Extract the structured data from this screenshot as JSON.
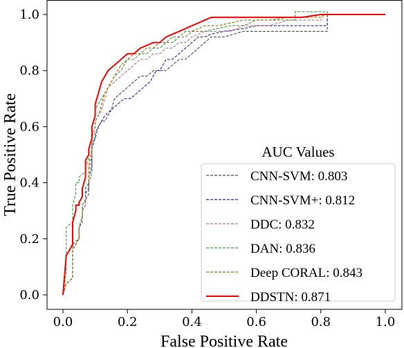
{
  "chart_data": {
    "type": "line",
    "xlabel": "False Positive Rate",
    "ylabel": "True Positive Rate",
    "xlim": [
      0.0,
      1.0
    ],
    "ylim": [
      0.0,
      1.0
    ],
    "xticks": [
      "0.0",
      "0.2",
      "0.4",
      "0.6",
      "0.8",
      "1.0"
    ],
    "yticks": [
      "0.0",
      "0.2",
      "0.4",
      "0.6",
      "0.8",
      "1.0"
    ],
    "grid": false,
    "legend": {
      "title": "AUC Values",
      "placement": "lower-right"
    },
    "series": [
      {
        "name": "CNN-SVM: 0.803",
        "color": "#4a4a6a",
        "dash": "dashed",
        "x": [
          0.0,
          0.01,
          0.01,
          0.03,
          0.03,
          0.05,
          0.05,
          0.06,
          0.06,
          0.07,
          0.07,
          0.08,
          0.08,
          0.09,
          0.09,
          0.1,
          0.1,
          0.11,
          0.12,
          0.13,
          0.14,
          0.15,
          0.16,
          0.18,
          0.2,
          0.22,
          0.24,
          0.26,
          0.28,
          0.3,
          0.32,
          0.34,
          0.36,
          0.38,
          0.4,
          0.42,
          0.44,
          0.46,
          0.5,
          0.56,
          0.6,
          0.62,
          0.64,
          0.66,
          0.7,
          0.74,
          0.8,
          0.82,
          0.82,
          1.0
        ],
        "y": [
          0.0,
          0.04,
          0.04,
          0.06,
          0.18,
          0.2,
          0.24,
          0.26,
          0.3,
          0.32,
          0.34,
          0.36,
          0.4,
          0.44,
          0.54,
          0.56,
          0.58,
          0.6,
          0.62,
          0.62,
          0.64,
          0.66,
          0.7,
          0.72,
          0.74,
          0.76,
          0.78,
          0.78,
          0.8,
          0.8,
          0.8,
          0.82,
          0.84,
          0.84,
          0.86,
          0.88,
          0.9,
          0.92,
          0.92,
          0.94,
          0.94,
          0.94,
          0.94,
          0.94,
          0.94,
          0.94,
          0.94,
          0.94,
          1.0,
          1.0
        ]
      },
      {
        "name": "CNN-SVM+: 0.812",
        "color": "#1f2aa0",
        "dash": "dashed",
        "x": [
          0.0,
          0.01,
          0.01,
          0.03,
          0.03,
          0.05,
          0.05,
          0.06,
          0.06,
          0.07,
          0.07,
          0.08,
          0.08,
          0.09,
          0.09,
          0.1,
          0.11,
          0.12,
          0.13,
          0.15,
          0.17,
          0.19,
          0.21,
          0.23,
          0.25,
          0.27,
          0.28,
          0.29,
          0.3,
          0.31,
          0.32,
          0.34,
          0.36,
          0.38,
          0.4,
          0.42,
          0.44,
          0.46,
          0.5,
          0.56,
          0.6,
          0.64,
          0.7,
          0.74,
          0.8,
          0.82,
          0.82,
          1.0
        ],
        "y": [
          0.0,
          0.04,
          0.04,
          0.06,
          0.16,
          0.2,
          0.24,
          0.28,
          0.32,
          0.34,
          0.36,
          0.38,
          0.42,
          0.46,
          0.52,
          0.56,
          0.6,
          0.62,
          0.64,
          0.66,
          0.68,
          0.7,
          0.7,
          0.72,
          0.74,
          0.76,
          0.78,
          0.8,
          0.8,
          0.82,
          0.84,
          0.84,
          0.86,
          0.88,
          0.9,
          0.92,
          0.92,
          0.93,
          0.94,
          0.95,
          0.96,
          0.96,
          0.96,
          0.96,
          0.96,
          0.96,
          1.0,
          1.0
        ]
      },
      {
        "name": "DDC: 0.832",
        "color": "#d07070",
        "dash": "dashed",
        "x": [
          0.0,
          0.01,
          0.01,
          0.03,
          0.03,
          0.05,
          0.05,
          0.06,
          0.06,
          0.07,
          0.07,
          0.08,
          0.08,
          0.09,
          0.09,
          0.1,
          0.1,
          0.11,
          0.12,
          0.13,
          0.14,
          0.16,
          0.18,
          0.2,
          0.22,
          0.24,
          0.26,
          0.28,
          0.3,
          0.32,
          0.34,
          0.36,
          0.38,
          0.4,
          0.44,
          0.48,
          0.52,
          0.56,
          0.6,
          0.64,
          0.7,
          0.74,
          0.78,
          0.8,
          0.81,
          1.0
        ],
        "y": [
          0.0,
          0.04,
          0.04,
          0.06,
          0.16,
          0.2,
          0.24,
          0.28,
          0.32,
          0.34,
          0.38,
          0.4,
          0.44,
          0.5,
          0.56,
          0.6,
          0.62,
          0.64,
          0.66,
          0.7,
          0.74,
          0.76,
          0.78,
          0.8,
          0.82,
          0.84,
          0.84,
          0.86,
          0.86,
          0.88,
          0.88,
          0.9,
          0.9,
          0.92,
          0.94,
          0.94,
          0.94,
          0.96,
          0.96,
          0.96,
          0.98,
          0.98,
          0.98,
          0.98,
          1.0,
          1.0
        ]
      },
      {
        "name": "DAN: 0.836",
        "color": "#3aa03a",
        "dash": "dashed",
        "x": [
          0.0,
          0.01,
          0.01,
          0.03,
          0.03,
          0.04,
          0.04,
          0.05,
          0.05,
          0.07,
          0.07,
          0.08,
          0.08,
          0.09,
          0.09,
          0.1,
          0.1,
          0.11,
          0.12,
          0.14,
          0.15,
          0.16,
          0.18,
          0.2,
          0.22,
          0.24,
          0.26,
          0.28,
          0.3,
          0.32,
          0.34,
          0.36,
          0.38,
          0.4,
          0.44,
          0.48,
          0.52,
          0.56,
          0.6,
          0.64,
          0.7,
          0.72,
          0.72,
          0.8,
          0.82,
          0.82,
          1.0
        ],
        "y": [
          0.0,
          0.08,
          0.24,
          0.26,
          0.32,
          0.36,
          0.4,
          0.4,
          0.42,
          0.44,
          0.46,
          0.48,
          0.52,
          0.56,
          0.6,
          0.64,
          0.66,
          0.68,
          0.7,
          0.74,
          0.76,
          0.78,
          0.8,
          0.84,
          0.84,
          0.86,
          0.86,
          0.88,
          0.88,
          0.9,
          0.9,
          0.92,
          0.92,
          0.94,
          0.94,
          0.95,
          0.96,
          0.96,
          0.98,
          0.98,
          0.98,
          0.98,
          1.01,
          1.01,
          1.01,
          1.0,
          1.0
        ]
      },
      {
        "name": "Deep CORAL: 0.843",
        "color": "#8a7a10",
        "dash": "dashed",
        "x": [
          0.0,
          0.01,
          0.01,
          0.03,
          0.03,
          0.05,
          0.05,
          0.06,
          0.06,
          0.07,
          0.07,
          0.08,
          0.08,
          0.09,
          0.09,
          0.1,
          0.1,
          0.11,
          0.12,
          0.13,
          0.14,
          0.15,
          0.16,
          0.18,
          0.2,
          0.22,
          0.24,
          0.26,
          0.28,
          0.3,
          0.32,
          0.34,
          0.36,
          0.38,
          0.4,
          0.42,
          0.44,
          0.48,
          0.52,
          0.56,
          0.6,
          0.64,
          0.7,
          0.74,
          0.78,
          0.8,
          0.81,
          1.0
        ],
        "y": [
          0.0,
          0.04,
          0.04,
          0.06,
          0.16,
          0.2,
          0.24,
          0.28,
          0.32,
          0.34,
          0.38,
          0.4,
          0.46,
          0.52,
          0.56,
          0.6,
          0.62,
          0.64,
          0.68,
          0.72,
          0.74,
          0.76,
          0.78,
          0.82,
          0.84,
          0.86,
          0.86,
          0.88,
          0.88,
          0.9,
          0.9,
          0.92,
          0.92,
          0.94,
          0.94,
          0.95,
          0.96,
          0.96,
          0.97,
          0.98,
          0.98,
          0.98,
          0.99,
          0.99,
          0.99,
          0.99,
          1.0,
          1.0
        ]
      },
      {
        "name": "DDSTN: 0.871",
        "color": "#ff0000",
        "dash": "solid",
        "x": [
          0.0,
          0.01,
          0.01,
          0.03,
          0.03,
          0.04,
          0.04,
          0.05,
          0.05,
          0.06,
          0.06,
          0.07,
          0.07,
          0.08,
          0.08,
          0.09,
          0.09,
          0.1,
          0.1,
          0.11,
          0.12,
          0.13,
          0.14,
          0.15,
          0.16,
          0.18,
          0.2,
          0.22,
          0.24,
          0.26,
          0.28,
          0.3,
          0.32,
          0.34,
          0.36,
          0.38,
          0.4,
          0.42,
          0.44,
          0.46,
          0.48,
          0.5,
          0.56,
          0.6,
          0.64,
          0.7,
          0.74,
          0.8,
          0.82,
          1.0
        ],
        "y": [
          0.0,
          0.14,
          0.14,
          0.18,
          0.26,
          0.3,
          0.32,
          0.32,
          0.33,
          0.35,
          0.38,
          0.42,
          0.48,
          0.5,
          0.52,
          0.56,
          0.6,
          0.64,
          0.68,
          0.72,
          0.76,
          0.78,
          0.8,
          0.81,
          0.82,
          0.84,
          0.86,
          0.86,
          0.88,
          0.89,
          0.9,
          0.9,
          0.92,
          0.93,
          0.94,
          0.95,
          0.96,
          0.97,
          0.98,
          0.99,
          0.99,
          0.99,
          0.99,
          0.99,
          0.99,
          0.99,
          0.99,
          1.0,
          1.0,
          1.0
        ]
      }
    ]
  }
}
